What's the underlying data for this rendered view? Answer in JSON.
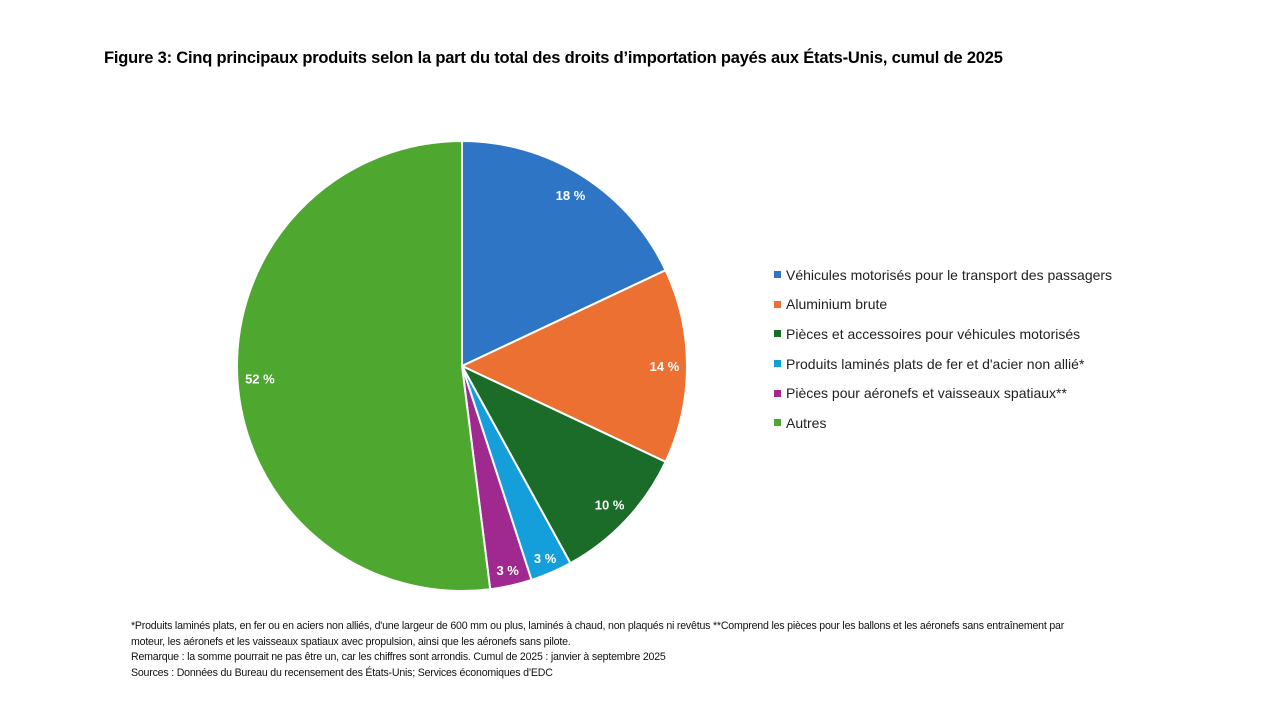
{
  "chart_data": {
    "type": "pie",
    "title": "Figure 3: Cinq principaux produits selon la part du total des droits d’importation payés aux États-Unis, cumul de 2025",
    "legend_position": "right",
    "start": "top, clockwise",
    "slices": [
      {
        "name": "Véhicules motorisés pour le transport des passagers",
        "value": 18,
        "label": "18 %",
        "color": "#2E75C6"
      },
      {
        "name": "Aluminium brute",
        "value": 14,
        "label": "14 %",
        "color": "#EB7032"
      },
      {
        "name": "Pièces et accessoires pour véhicules motorisés",
        "value": 10,
        "label": "10 %",
        "color": "#1B6C28"
      },
      {
        "name": "Produits laminés plats de fer et d'acier non allié*",
        "value": 3,
        "label": "3 %",
        "color": "#149FDA"
      },
      {
        "name": "Pièces pour aéronefs et vaisseaux spatiaux**",
        "value": 3,
        "label": "3 %",
        "color": "#A0298F"
      },
      {
        "name": "Autres",
        "value": 52,
        "label": "52 %",
        "color": "#4EA72F"
      }
    ]
  },
  "notes": [
    "*Produits laminés plats, en fer ou en aciers non alliés, d'une largeur de 600 mm ou plus, laminés à chaud, non plaqués ni revêtus **Comprend les pièces pour les ballons et les aéronefs sans entraînement par moteur, les aéronefs et les vaisseaux spatiaux avec propulsion, ainsi que les aéronefs sans pilote.",
    "Remarque : la somme pourrait ne pas être un, car les chiffres sont arrondis. Cumul de 2025 : janvier à septembre 2025",
    "Sources : Données du Bureau du recensement des États-Unis; Services économiques d’EDC"
  ]
}
